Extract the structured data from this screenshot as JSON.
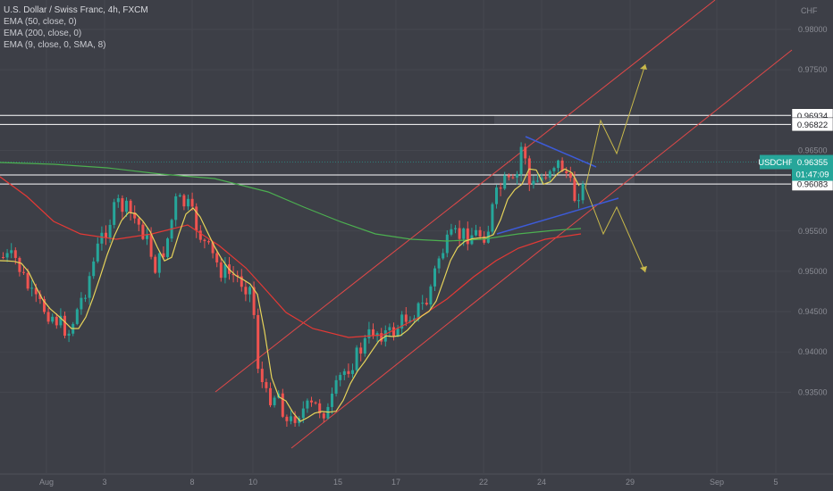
{
  "legend": {
    "title": "U.S. Dollar / Swiss Franc, 4h, FXCM",
    "indicators": [
      "EMA (50, close, 0)",
      "EMA (200, close, 0)",
      "EMA (9, close, 0, SMA, 8)"
    ]
  },
  "chart_data": {
    "type": "candlestick",
    "symbol": "USDCHF",
    "currency_label": "CHF",
    "ylim": [
      0.935,
      0.982
    ],
    "y_ticks": [
      {
        "value": 0.98,
        "label": "0.98000"
      },
      {
        "value": 0.975,
        "label": "0.97500"
      },
      {
        "value": 0.965,
        "label": "0.96500"
      },
      {
        "value": 0.955,
        "label": "0.95500"
      },
      {
        "value": 0.95,
        "label": "0.95000"
      },
      {
        "value": 0.945,
        "label": "0.94500"
      },
      {
        "value": 0.94,
        "label": "0.94000"
      },
      {
        "value": 0.935,
        "label": "0.93500"
      }
    ],
    "x_ticks": [
      "Aug",
      "3",
      "8",
      "10",
      "15",
      "17",
      "22",
      "24",
      "29",
      "Sep",
      "5"
    ],
    "price_boxes": [
      {
        "value": 0.96934,
        "label": "0.96934"
      },
      {
        "value": 0.96822,
        "label": "0.96822"
      },
      {
        "value": 0.96195,
        "label": "0.96195"
      },
      {
        "value": 0.96083,
        "label": "0.96083"
      }
    ],
    "current_price": {
      "symbol_label": "USDCHF",
      "value": 0.96355,
      "label": "0.96355",
      "countdown": "01:47:09"
    },
    "colors": {
      "up": "#26a69a",
      "down": "#ef5350",
      "ema9": "#e6d35a",
      "ema50": "#e53935",
      "ema200": "#4caf50",
      "channel": "#e04848",
      "trend": "#3d5bd9",
      "projection": "#c8b84a",
      "level": "#ffffff",
      "box_fill": "#4a4c55"
    }
  }
}
